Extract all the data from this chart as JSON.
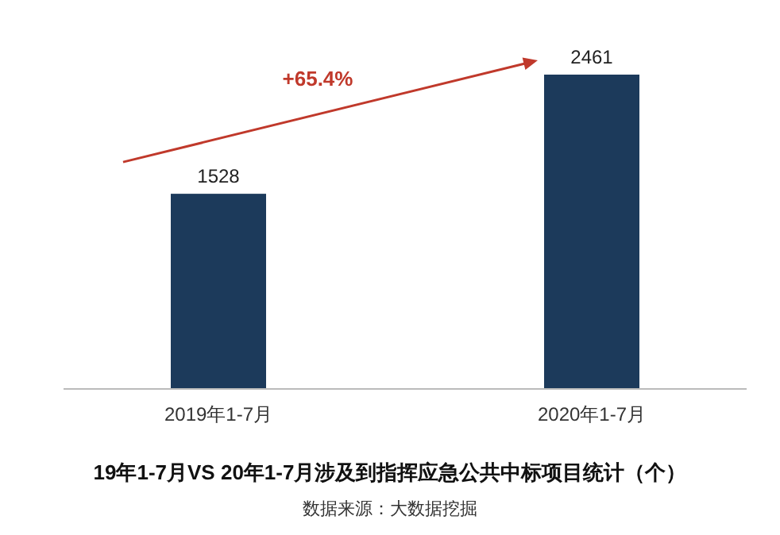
{
  "chart_data": {
    "type": "bar",
    "title": "19年1-7月VS 20年1-7月涉及到指挥应急公共中标项目统计（个）",
    "categories": [
      "2019年1-7月",
      "2020年1-7月"
    ],
    "values": [
      1528,
      2461
    ],
    "color": "#1c3a5b",
    "data_labels": true,
    "annotations": [
      "+65.4%",
      "数据来源：大数据挖掘"
    ]
  }
}
